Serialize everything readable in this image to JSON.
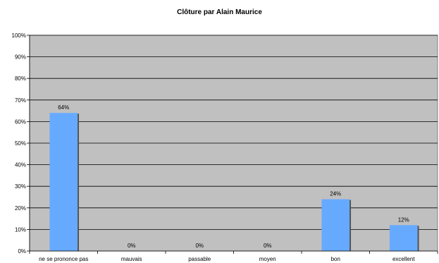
{
  "chart_data": {
    "type": "bar",
    "title": "Clôture par Alain Maurice",
    "xlabel": "",
    "ylabel": "",
    "categories": [
      "ne se prononce pas",
      "mauvais",
      "passable",
      "moyen",
      "bon",
      "excellent"
    ],
    "values": [
      64,
      0,
      0,
      0,
      24,
      12
    ],
    "data_labels": [
      "64%",
      "0%",
      "0%",
      "0%",
      "24%",
      "12%"
    ],
    "ylim": [
      0,
      100
    ],
    "yticks": [
      "0%",
      "10%",
      "20%",
      "30%",
      "40%",
      "50%",
      "60%",
      "70%",
      "80%",
      "90%",
      "100%"
    ],
    "grid": true,
    "legend": "none",
    "colors": {
      "bar": "#66aaff",
      "bar_shadow": "#555555",
      "plot_background": "#c0c0c0",
      "gridline": "#000000"
    }
  }
}
